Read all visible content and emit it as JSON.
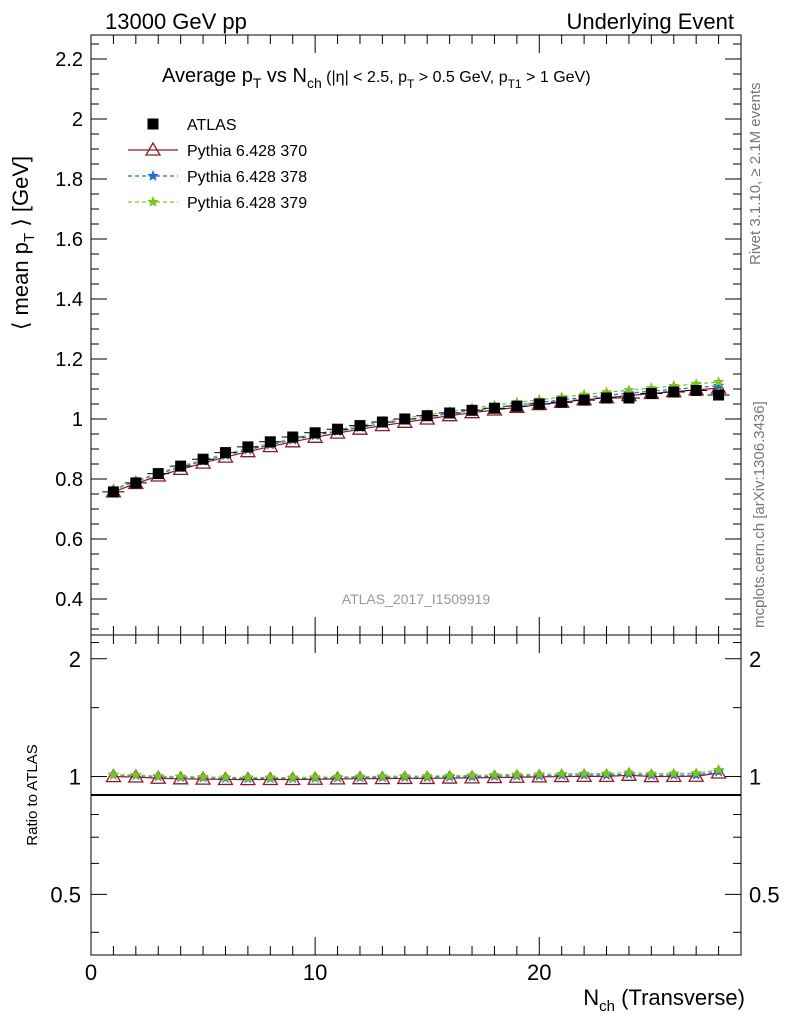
{
  "header": {
    "left": "13000 GeV pp",
    "right": "Underlying Event"
  },
  "side_text": {
    "rivet": "Rivet 3.1.10, ≥ 2.1M events",
    "mcplots": "mcplots.cern.ch [arXiv:1306.3436]"
  },
  "chart_data": {
    "type": "scatter",
    "title_parts": {
      "a": "Average p",
      "a_sub": "T",
      "b": " vs N",
      "b_sub": "ch",
      "c": " (|η| < 2.5, p",
      "c_sub": "T",
      "d": " > 0.5 GeV, p",
      "d_sub": "T1",
      "e": " > 1 GeV)"
    },
    "ylabel_parts": {
      "a": "⟨ mean p",
      "sub": "T",
      "b": " ⟩ [GeV]"
    },
    "xlabel_parts": {
      "a": "N",
      "sub": "ch",
      "b": " (Transverse)"
    },
    "ratio_ylabel": "Ratio to ATLAS",
    "analysis_label": "ATLAS_2017_I1509919",
    "xlim": [
      0,
      29
    ],
    "ylim": [
      0.28,
      2.28
    ],
    "ratio_ylim": [
      0.35,
      2.3
    ],
    "x_ticks": [
      "0",
      "10",
      "20"
    ],
    "y_ticks": [
      "0.4",
      "0.6",
      "0.8",
      "1",
      "1.2",
      "1.4",
      "1.6",
      "1.8",
      "2",
      "2.2"
    ],
    "ratio_ticks": [
      "0.5",
      "1",
      "2"
    ],
    "x": [
      1,
      2,
      3,
      4,
      5,
      6,
      7,
      8,
      9,
      10,
      11,
      12,
      13,
      14,
      15,
      16,
      17,
      18,
      19,
      20,
      21,
      22,
      23,
      24,
      25,
      26,
      27,
      28
    ],
    "series": [
      {
        "name": "ATLAS",
        "color": "#000000",
        "marker": "square",
        "values": [
          0.757,
          0.787,
          0.818,
          0.843,
          0.866,
          0.888,
          0.907,
          0.924,
          0.94,
          0.954,
          0.966,
          0.978,
          0.99,
          1.0,
          1.011,
          1.02,
          1.029,
          1.036,
          1.043,
          1.05,
          1.056,
          1.063,
          1.07,
          1.07,
          1.085,
          1.09,
          1.095,
          1.08
        ]
      },
      {
        "name": "Pythia 6.428 370",
        "color": "#8b1a2b",
        "marker": "triangle",
        "line": "solid",
        "values": [
          0.757,
          0.785,
          0.81,
          0.832,
          0.853,
          0.873,
          0.891,
          0.908,
          0.924,
          0.939,
          0.953,
          0.966,
          0.978,
          0.989,
          1.0,
          1.011,
          1.021,
          1.03,
          1.039,
          1.048,
          1.056,
          1.064,
          1.071,
          1.078,
          1.085,
          1.091,
          1.097,
          1.103
        ]
      },
      {
        "name": "Pythia 6.428 378",
        "color": "#1f6fd1",
        "marker": "star",
        "line": "dashed",
        "values": [
          0.764,
          0.792,
          0.817,
          0.839,
          0.86,
          0.879,
          0.897,
          0.914,
          0.93,
          0.945,
          0.959,
          0.972,
          0.985,
          0.996,
          1.007,
          1.018,
          1.028,
          1.038,
          1.047,
          1.055,
          1.064,
          1.072,
          1.079,
          1.086,
          1.093,
          1.099,
          1.105,
          1.111
        ]
      },
      {
        "name": "Pythia 6.428 379",
        "color": "#7ac41c",
        "marker": "star",
        "line": "dashed",
        "values": [
          0.766,
          0.794,
          0.82,
          0.843,
          0.864,
          0.884,
          0.902,
          0.919,
          0.935,
          0.95,
          0.964,
          0.978,
          0.991,
          1.003,
          1.014,
          1.025,
          1.036,
          1.046,
          1.055,
          1.064,
          1.073,
          1.081,
          1.089,
          1.096,
          1.103,
          1.11,
          1.117,
          1.123
        ]
      }
    ]
  }
}
